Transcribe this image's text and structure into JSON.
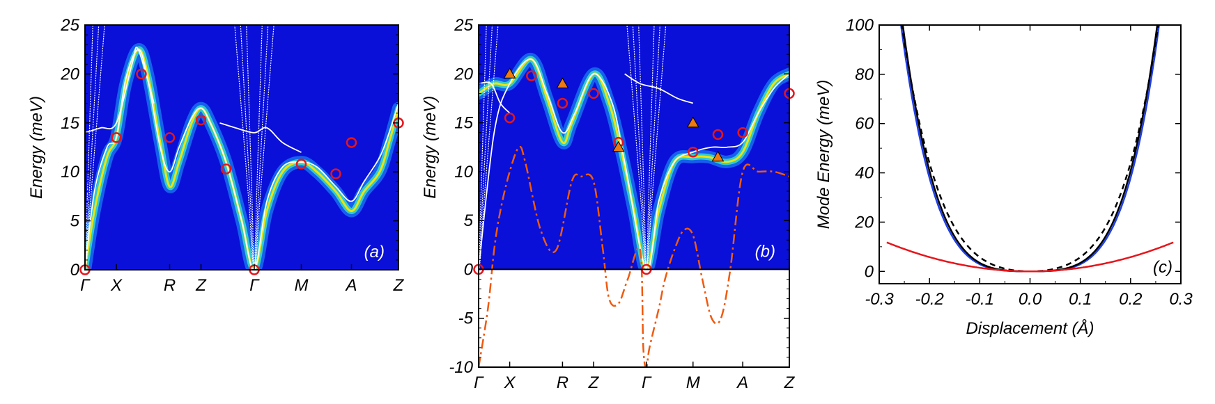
{
  "chart_data": [
    {
      "type": "line",
      "panel": "(a)",
      "title": "",
      "xlabel": "",
      "ylabel": "Energy (meV)",
      "ylim": [
        0,
        25
      ],
      "yticks": [
        0,
        5,
        10,
        15,
        20,
        25
      ],
      "x_labels": [
        "Γ",
        "X",
        "R",
        "Z",
        "Γ",
        "M",
        "A",
        "Z"
      ],
      "x_label_pos": [
        0,
        0.1,
        0.27,
        0.37,
        0.54,
        0.69,
        0.85,
        1.0
      ],
      "background": "spectral intensity map",
      "bright_band": [
        [
          0,
          0
        ],
        [
          0.03,
          6
        ],
        [
          0.07,
          11.5
        ],
        [
          0.1,
          13.5
        ],
        [
          0.13,
          19
        ],
        [
          0.17,
          22.5
        ],
        [
          0.2,
          20
        ],
        [
          0.24,
          13
        ],
        [
          0.27,
          8.5
        ],
        [
          0.3,
          11
        ],
        [
          0.34,
          15
        ],
        [
          0.37,
          16.5
        ],
        [
          0.4,
          15
        ],
        [
          0.45,
          11
        ],
        [
          0.5,
          5
        ],
        [
          0.54,
          0
        ],
        [
          0.58,
          6
        ],
        [
          0.63,
          10
        ],
        [
          0.69,
          11
        ],
        [
          0.74,
          10
        ],
        [
          0.8,
          8
        ],
        [
          0.85,
          6
        ],
        [
          0.89,
          8
        ],
        [
          0.94,
          10
        ],
        [
          0.97,
          13
        ],
        [
          1.0,
          16.5
        ]
      ],
      "dft_lines": [
        [
          [
            0,
            0
          ],
          [
            0.03,
            8
          ],
          [
            0.07,
            12.5
          ],
          [
            0.1,
            13.5
          ],
          [
            0.13,
            19.5
          ],
          [
            0.17,
            22.5
          ],
          [
            0.2,
            19.5
          ],
          [
            0.24,
            12.5
          ],
          [
            0.27,
            10
          ],
          [
            0.3,
            12.5
          ],
          [
            0.34,
            15.5
          ],
          [
            0.37,
            16.5
          ],
          [
            0.4,
            15
          ],
          [
            0.45,
            11
          ],
          [
            0.5,
            5
          ],
          [
            0.54,
            0
          ],
          [
            0.58,
            7
          ],
          [
            0.63,
            10.5
          ],
          [
            0.69,
            11
          ],
          [
            0.74,
            10.5
          ],
          [
            0.8,
            8.5
          ],
          [
            0.85,
            7
          ],
          [
            0.89,
            9
          ],
          [
            0.94,
            11.5
          ],
          [
            0.97,
            14
          ],
          [
            1.0,
            17
          ]
        ],
        [
          [
            0,
            14
          ],
          [
            0.05,
            14.5
          ],
          [
            0.1,
            15
          ],
          [
            0.15,
            21
          ],
          [
            0.17,
            22.5
          ],
          [
            0.22,
            17
          ]
        ],
        [
          [
            0.43,
            15
          ],
          [
            0.48,
            14.5
          ],
          [
            0.54,
            14
          ],
          [
            0.58,
            14.5
          ],
          [
            0.63,
            13
          ],
          [
            0.69,
            12
          ]
        ]
      ],
      "exp_points": [
        [
          0,
          0
        ],
        [
          0.1,
          13.5
        ],
        [
          0.18,
          20
        ],
        [
          0.27,
          13.5
        ],
        [
          0.37,
          15.3
        ],
        [
          0.45,
          10.3
        ],
        [
          0.54,
          0
        ],
        [
          0.69,
          10.8
        ],
        [
          0.8,
          9.8
        ],
        [
          0.85,
          13
        ],
        [
          1.0,
          15
        ]
      ],
      "colors": {
        "background": "#0a10d8",
        "band": "#ffe600",
        "dft": "#ffffff",
        "exp": "#e6151b"
      }
    },
    {
      "type": "line",
      "panel": "(b)",
      "title": "",
      "xlabel": "",
      "ylabel": "Energy (meV)",
      "ylim": [
        -10,
        25
      ],
      "yticks": [
        -10,
        -5,
        0,
        5,
        10,
        15,
        20,
        25
      ],
      "x_labels": [
        "Γ",
        "X",
        "R",
        "Z",
        "Γ",
        "M",
        "A",
        "Z"
      ],
      "x_label_pos": [
        0,
        0.1,
        0.27,
        0.37,
        0.54,
        0.69,
        0.85,
        1.0
      ],
      "background": "spectral intensity map (E >= 0)",
      "bright_band": [
        [
          0,
          18
        ],
        [
          0.05,
          19
        ],
        [
          0.1,
          19
        ],
        [
          0.17,
          21.5
        ],
        [
          0.22,
          17.5
        ],
        [
          0.27,
          13
        ],
        [
          0.3,
          15
        ],
        [
          0.37,
          20
        ],
        [
          0.42,
          17
        ],
        [
          0.46,
          12
        ],
        [
          0.5,
          6
        ],
        [
          0.54,
          0
        ],
        [
          0.58,
          6
        ],
        [
          0.63,
          11
        ],
        [
          0.69,
          11.5
        ],
        [
          0.74,
          11.5
        ],
        [
          0.8,
          11
        ],
        [
          0.85,
          12
        ],
        [
          0.9,
          16
        ],
        [
          0.95,
          19
        ],
        [
          1.0,
          20
        ]
      ],
      "dft_lines": [
        [
          [
            0,
            0
          ],
          [
            0.05,
            14
          ],
          [
            0.1,
            19
          ],
          [
            0.17,
            21.5
          ],
          [
            0.22,
            18
          ],
          [
            0.27,
            14
          ],
          [
            0.31,
            16
          ],
          [
            0.37,
            20
          ],
          [
            0.43,
            17
          ],
          [
            0.47,
            11
          ],
          [
            0.54,
            0
          ],
          [
            0.58,
            7
          ],
          [
            0.63,
            11
          ],
          [
            0.69,
            12
          ],
          [
            0.75,
            12.5
          ],
          [
            0.8,
            12.5
          ],
          [
            0.85,
            13
          ],
          [
            0.9,
            16
          ],
          [
            0.95,
            18.5
          ],
          [
            1.0,
            20
          ]
        ],
        [
          [
            0,
            19
          ],
          [
            0.04,
            19
          ],
          [
            0.07,
            17
          ],
          [
            0.1,
            16
          ]
        ],
        [
          [
            0.47,
            20
          ],
          [
            0.52,
            19
          ],
          [
            0.58,
            18.5
          ],
          [
            0.64,
            17.5
          ],
          [
            0.69,
            17
          ]
        ]
      ],
      "exp_circles": [
        [
          0,
          0
        ],
        [
          0.1,
          15.5
        ],
        [
          0.17,
          19.8
        ],
        [
          0.27,
          17
        ],
        [
          0.37,
          18
        ],
        [
          0.45,
          13
        ],
        [
          0.54,
          0
        ],
        [
          0.69,
          12
        ],
        [
          0.77,
          13.8
        ],
        [
          0.85,
          14
        ],
        [
          1.0,
          18
        ]
      ],
      "exp_triangles": [
        [
          0.1,
          20
        ],
        [
          0.27,
          19
        ],
        [
          0.45,
          12.5
        ],
        [
          0.69,
          15
        ],
        [
          0.77,
          11.5
        ]
      ],
      "dash_dot_curve": [
        [
          0,
          -10
        ],
        [
          0.03,
          -4
        ],
        [
          0.05,
          2
        ],
        [
          0.07,
          6
        ],
        [
          0.1,
          10
        ],
        [
          0.13,
          12.5
        ],
        [
          0.15,
          11
        ],
        [
          0.2,
          4
        ],
        [
          0.25,
          2
        ],
        [
          0.3,
          9
        ],
        [
          0.33,
          9.5
        ],
        [
          0.37,
          9
        ],
        [
          0.4,
          2
        ],
        [
          0.42,
          -3
        ],
        [
          0.45,
          -3.5
        ],
        [
          0.48,
          -1
        ],
        [
          0.52,
          2
        ],
        [
          0.53,
          -8
        ],
        [
          0.54,
          -10
        ],
        [
          0.55,
          -8
        ],
        [
          0.58,
          -4
        ],
        [
          0.6,
          -1
        ],
        [
          0.63,
          2
        ],
        [
          0.66,
          4
        ],
        [
          0.69,
          3.5
        ],
        [
          0.72,
          -1
        ],
        [
          0.75,
          -5
        ],
        [
          0.78,
          -5
        ],
        [
          0.81,
          0
        ],
        [
          0.85,
          10
        ],
        [
          0.9,
          10
        ],
        [
          0.95,
          10
        ],
        [
          1.0,
          9.5
        ]
      ],
      "colors": {
        "background": "#0a10d8",
        "band": "#ffe600",
        "dft": "#ffffff",
        "exp": "#e6151b",
        "triangle": "#ef7a10",
        "dash_dot": "#f05a0f"
      }
    },
    {
      "type": "line",
      "panel": "(c)",
      "title": "",
      "xlabel": "Displacement (Å)",
      "ylabel": "Mode Energy (meV)",
      "xlim": [
        -0.3,
        0.3
      ],
      "ylim": [
        -5,
        100
      ],
      "xticks": [
        -0.3,
        -0.2,
        -0.1,
        0.0,
        0.1,
        0.2,
        0.3
      ],
      "xtick_labels": [
        "-0.3",
        "-0.2",
        "-0.1",
        "0.0",
        "0.1",
        "0.2",
        "0.3"
      ],
      "yticks": [
        0,
        20,
        40,
        60,
        80,
        100
      ],
      "ytick_labels": [
        "0",
        "20",
        "40",
        "60",
        "80",
        "100"
      ],
      "series": [
        {
          "name": "blue",
          "color": "#1f3fe6",
          "style": "solid",
          "a2": 70,
          "a4": 22000
        },
        {
          "name": "black-solid",
          "color": "#000000",
          "style": "solid",
          "a2": 120,
          "a4": 22500
        },
        {
          "name": "black-dashed",
          "color": "#000000",
          "style": "dashed",
          "a2": 400,
          "a4": 17500
        },
        {
          "name": "red",
          "color": "#e6151b",
          "style": "solid",
          "a2": 145,
          "a4": 0
        }
      ]
    }
  ]
}
